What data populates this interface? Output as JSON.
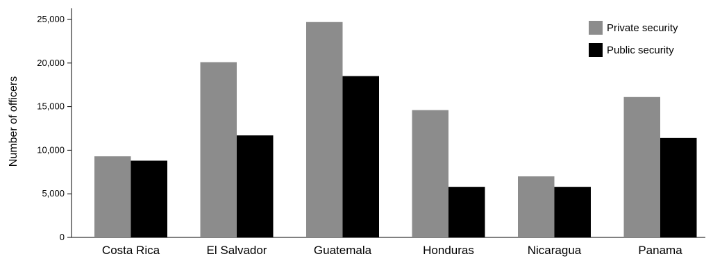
{
  "chart_data": {
    "type": "bar",
    "title": "",
    "xlabel": "",
    "ylabel": "Number of officers",
    "ylim": [
      0,
      25000
    ],
    "yticks": [
      0,
      5000,
      10000,
      15000,
      20000,
      25000
    ],
    "ytick_labels": [
      "0",
      "5,000",
      "10,000",
      "15,000",
      "20,000",
      "25,000"
    ],
    "categories": [
      "Costa Rica",
      "El Salvador",
      "Guatemala",
      "Honduras",
      "Nicaragua",
      "Panama"
    ],
    "series": [
      {
        "name": "Private security",
        "color": "#8c8c8c",
        "values": [
          9300,
          20100,
          24700,
          14600,
          7000,
          16100
        ]
      },
      {
        "name": "Public security",
        "color": "#000000",
        "values": [
          8800,
          11700,
          18500,
          5800,
          5800,
          11400
        ]
      }
    ],
    "grid": false,
    "legend": "top-right"
  }
}
